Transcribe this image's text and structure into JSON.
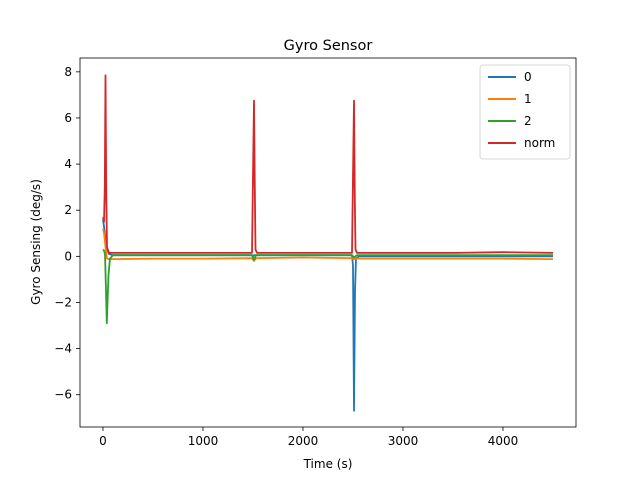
{
  "chart_data": {
    "type": "line",
    "title": "Gyro Sensor",
    "xlabel": "Time (s)",
    "ylabel": "Gyro Sensing (deg/s)",
    "xlim": [
      -230,
      4730
    ],
    "ylim": [
      -7.4,
      8.6
    ],
    "xticks": [
      0,
      1000,
      2000,
      3000,
      4000
    ],
    "yticks": [
      -6,
      -4,
      -2,
      0,
      2,
      4,
      6,
      8
    ],
    "grid": false,
    "legend_position": "top-right",
    "series": [
      {
        "name": "0",
        "color": "#1f77b4",
        "points": [
          [
            0,
            1.6
          ],
          [
            10,
            1.3
          ],
          [
            20,
            0.9
          ],
          [
            30,
            0.6
          ],
          [
            40,
            0.3
          ],
          [
            60,
            0.1
          ],
          [
            100,
            0.05
          ],
          [
            500,
            0.05
          ],
          [
            1000,
            0.05
          ],
          [
            1490,
            0.05
          ],
          [
            1500,
            0.0
          ],
          [
            1510,
            0.05
          ],
          [
            2000,
            0.05
          ],
          [
            2490,
            0.05
          ],
          [
            2500,
            -0.4
          ],
          [
            2510,
            -6.7
          ],
          [
            2520,
            -1.5
          ],
          [
            2530,
            -0.1
          ],
          [
            2560,
            0.0
          ],
          [
            3000,
            0.0
          ],
          [
            3500,
            0.0
          ],
          [
            4000,
            0.0
          ],
          [
            4500,
            0.0
          ]
        ]
      },
      {
        "name": "1",
        "color": "#ff7f0e",
        "points": [
          [
            0,
            1.2
          ],
          [
            10,
            1.0
          ],
          [
            20,
            0.6
          ],
          [
            30,
            0.2
          ],
          [
            40,
            -0.1
          ],
          [
            60,
            -0.12
          ],
          [
            100,
            -0.12
          ],
          [
            500,
            -0.1
          ],
          [
            1000,
            -0.1
          ],
          [
            1490,
            -0.08
          ],
          [
            1510,
            -0.2
          ],
          [
            1530,
            -0.08
          ],
          [
            2000,
            -0.05
          ],
          [
            2490,
            -0.08
          ],
          [
            2510,
            -0.12
          ],
          [
            2540,
            -0.1
          ],
          [
            3000,
            -0.1
          ],
          [
            3500,
            -0.1
          ],
          [
            4000,
            -0.1
          ],
          [
            4500,
            -0.12
          ]
        ]
      },
      {
        "name": "2",
        "color": "#2ca02c",
        "points": [
          [
            0,
            0.3
          ],
          [
            10,
            0.25
          ],
          [
            20,
            0.1
          ],
          [
            30,
            -1.5
          ],
          [
            38,
            -2.9
          ],
          [
            45,
            -2.0
          ],
          [
            55,
            -0.8
          ],
          [
            70,
            -0.1
          ],
          [
            100,
            0.05
          ],
          [
            500,
            0.05
          ],
          [
            1000,
            0.05
          ],
          [
            1490,
            0.05
          ],
          [
            1510,
            -0.15
          ],
          [
            1530,
            0.05
          ],
          [
            2000,
            0.05
          ],
          [
            2490,
            0.05
          ],
          [
            2510,
            -0.05
          ],
          [
            2540,
            0.05
          ],
          [
            3000,
            0.05
          ],
          [
            3500,
            0.05
          ],
          [
            4000,
            0.05
          ],
          [
            4500,
            0.05
          ]
        ]
      },
      {
        "name": "norm",
        "color": "#d62728",
        "points": [
          [
            0,
            1.7
          ],
          [
            10,
            1.5
          ],
          [
            18,
            3.0
          ],
          [
            25,
            7.85
          ],
          [
            32,
            3.0
          ],
          [
            40,
            0.4
          ],
          [
            60,
            0.15
          ],
          [
            100,
            0.15
          ],
          [
            500,
            0.15
          ],
          [
            1000,
            0.15
          ],
          [
            1490,
            0.15
          ],
          [
            1500,
            3.5
          ],
          [
            1510,
            6.75
          ],
          [
            1518,
            3.0
          ],
          [
            1525,
            0.3
          ],
          [
            1540,
            0.15
          ],
          [
            2000,
            0.15
          ],
          [
            2490,
            0.15
          ],
          [
            2500,
            3.5
          ],
          [
            2510,
            6.75
          ],
          [
            2518,
            2.5
          ],
          [
            2525,
            0.3
          ],
          [
            2540,
            0.15
          ],
          [
            3000,
            0.15
          ],
          [
            3500,
            0.15
          ],
          [
            4000,
            0.18
          ],
          [
            4500,
            0.15
          ]
        ]
      }
    ]
  }
}
